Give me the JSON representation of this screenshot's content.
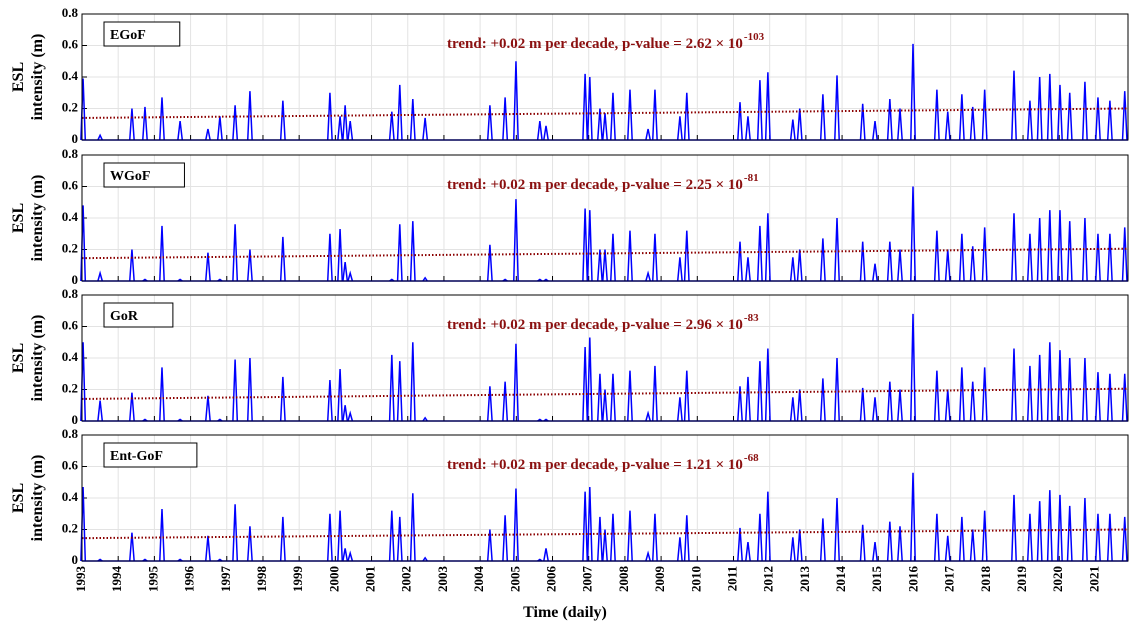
{
  "chart_data": [
    {
      "type": "line",
      "panel_label": "EGoF",
      "ylabel_lines": [
        "ESL",
        "intensity (m)"
      ],
      "annotation": "trend: +0.02 m per decade, p-value = 2.62 × 10",
      "annotation_exponent": "-103",
      "color": "#0000ff",
      "trend": {
        "x": [
          1993,
          2021.9
        ],
        "values": [
          0.14,
          0.2
        ],
        "color": "#8b0000"
      },
      "x": [
        1993.03,
        1993.5,
        1994.38,
        1994.74,
        1995.21,
        1995.71,
        1996.48,
        1996.81,
        1997.23,
        1997.64,
        1998.55,
        1999.85,
        2000.13,
        2000.27,
        2000.41,
        2001.56,
        2001.78,
        2002.14,
        2002.48,
        2004.27,
        2004.69,
        2004.99,
        2005.65,
        2005.82,
        2006.9,
        2007.03,
        2007.31,
        2007.45,
        2007.67,
        2008.14,
        2008.64,
        2008.83,
        2009.52,
        2009.71,
        2011.18,
        2011.4,
        2011.73,
        2011.95,
        2012.64,
        2012.83,
        2013.47,
        2013.86,
        2014.57,
        2014.91,
        2015.32,
        2015.6,
        2015.96,
        2016.62,
        2016.92,
        2017.31,
        2017.61,
        2017.94,
        2018.75,
        2019.19,
        2019.46,
        2019.74,
        2020.02,
        2020.29,
        2020.71,
        2021.07,
        2021.4,
        2021.81
      ],
      "values": [
        0.39,
        0.03,
        0.2,
        0.21,
        0.27,
        0.12,
        0.07,
        0.15,
        0.22,
        0.31,
        0.25,
        0.3,
        0.15,
        0.22,
        0.12,
        0.18,
        0.35,
        0.26,
        0.14,
        0.22,
        0.27,
        0.5,
        0.12,
        0.09,
        0.42,
        0.4,
        0.2,
        0.17,
        0.3,
        0.32,
        0.07,
        0.32,
        0.15,
        0.3,
        0.24,
        0.15,
        0.38,
        0.43,
        0.13,
        0.2,
        0.29,
        0.41,
        0.23,
        0.12,
        0.26,
        0.2,
        0.61,
        0.32,
        0.18,
        0.29,
        0.21,
        0.32,
        0.44,
        0.25,
        0.4,
        0.42,
        0.35,
        0.3,
        0.37,
        0.27,
        0.25,
        0.31
      ],
      "xlim": [
        1993,
        2021.9
      ],
      "xticks": [
        1993,
        1994,
        1995,
        1996,
        1997,
        1998,
        1999,
        2000,
        2001,
        2002,
        2003,
        2004,
        2005,
        2006,
        2007,
        2008,
        2009,
        2010,
        2011,
        2012,
        2013,
        2014,
        2015,
        2016,
        2017,
        2018,
        2019,
        2020,
        2021
      ],
      "ylim": [
        0,
        0.8
      ],
      "yticks": [
        0,
        0.2,
        0.4,
        0.6,
        0.8
      ],
      "grid": true
    },
    {
      "type": "line",
      "panel_label": "WGoF",
      "ylabel_lines": [
        "ESL",
        "intensity (m)"
      ],
      "annotation": "trend: +0.02 m per decade, p-value = 2.25 × 10",
      "annotation_exponent": "-81",
      "color": "#0000ff",
      "trend": {
        "x": [
          1993,
          2021.9
        ],
        "values": [
          0.145,
          0.205
        ],
        "color": "#8b0000"
      },
      "x": [
        1993.03,
        1993.5,
        1994.38,
        1994.74,
        1995.21,
        1995.71,
        1996.48,
        1996.81,
        1997.23,
        1997.64,
        1998.55,
        1999.85,
        2000.13,
        2000.27,
        2000.41,
        2001.56,
        2001.78,
        2002.14,
        2002.48,
        2004.27,
        2004.69,
        2004.99,
        2005.65,
        2005.82,
        2006.9,
        2007.03,
        2007.31,
        2007.45,
        2007.67,
        2008.14,
        2008.64,
        2008.83,
        2009.52,
        2009.71,
        2011.18,
        2011.4,
        2011.73,
        2011.95,
        2012.64,
        2012.83,
        2013.47,
        2013.86,
        2014.57,
        2014.91,
        2015.32,
        2015.6,
        2015.96,
        2016.62,
        2016.92,
        2017.31,
        2017.61,
        2017.94,
        2018.75,
        2019.19,
        2019.46,
        2019.74,
        2020.02,
        2020.29,
        2020.71,
        2021.07,
        2021.4,
        2021.81
      ],
      "values": [
        0.48,
        0.05,
        0.2,
        0.01,
        0.35,
        0.01,
        0.18,
        0.01,
        0.36,
        0.2,
        0.28,
        0.3,
        0.33,
        0.12,
        0.05,
        0.01,
        0.36,
        0.38,
        0.02,
        0.23,
        0.01,
        0.52,
        0.01,
        0.01,
        0.46,
        0.45,
        0.2,
        0.2,
        0.3,
        0.32,
        0.05,
        0.3,
        0.15,
        0.32,
        0.25,
        0.15,
        0.35,
        0.43,
        0.15,
        0.2,
        0.27,
        0.4,
        0.25,
        0.11,
        0.25,
        0.2,
        0.6,
        0.32,
        0.2,
        0.3,
        0.22,
        0.34,
        0.43,
        0.3,
        0.4,
        0.45,
        0.45,
        0.38,
        0.4,
        0.3,
        0.3,
        0.34
      ],
      "xlim": [
        1993,
        2021.9
      ],
      "xticks": [
        1993,
        1994,
        1995,
        1996,
        1997,
        1998,
        1999,
        2000,
        2001,
        2002,
        2003,
        2004,
        2005,
        2006,
        2007,
        2008,
        2009,
        2010,
        2011,
        2012,
        2013,
        2014,
        2015,
        2016,
        2017,
        2018,
        2019,
        2020,
        2021
      ],
      "ylim": [
        0,
        0.8
      ],
      "yticks": [
        0,
        0.2,
        0.4,
        0.6,
        0.8
      ],
      "grid": true
    },
    {
      "type": "line",
      "panel_label": "GoR",
      "ylabel_lines": [
        "ESL",
        "intensity (m)"
      ],
      "annotation": "trend: +0.02 m per decade, p-value = 2.96 × 10",
      "annotation_exponent": "-83",
      "color": "#0000ff",
      "trend": {
        "x": [
          1993,
          2021.9
        ],
        "values": [
          0.14,
          0.205
        ],
        "color": "#8b0000"
      },
      "x": [
        1993.03,
        1993.5,
        1994.38,
        1994.74,
        1995.21,
        1995.71,
        1996.48,
        1996.81,
        1997.23,
        1997.64,
        1998.55,
        1999.85,
        2000.13,
        2000.27,
        2000.41,
        2001.56,
        2001.78,
        2002.14,
        2002.48,
        2004.27,
        2004.69,
        2004.99,
        2005.65,
        2005.82,
        2006.9,
        2007.03,
        2007.31,
        2007.45,
        2007.67,
        2008.14,
        2008.64,
        2008.83,
        2009.52,
        2009.71,
        2011.18,
        2011.4,
        2011.73,
        2011.95,
        2012.64,
        2012.83,
        2013.47,
        2013.86,
        2014.57,
        2014.91,
        2015.32,
        2015.6,
        2015.96,
        2016.62,
        2016.92,
        2017.31,
        2017.61,
        2017.94,
        2018.75,
        2019.19,
        2019.46,
        2019.74,
        2020.02,
        2020.29,
        2020.71,
        2021.07,
        2021.4,
        2021.81
      ],
      "values": [
        0.5,
        0.13,
        0.18,
        0.01,
        0.34,
        0.01,
        0.16,
        0.01,
        0.39,
        0.4,
        0.28,
        0.26,
        0.33,
        0.1,
        0.05,
        0.42,
        0.38,
        0.5,
        0.02,
        0.22,
        0.25,
        0.49,
        0.01,
        0.01,
        0.47,
        0.53,
        0.3,
        0.2,
        0.3,
        0.32,
        0.05,
        0.35,
        0.15,
        0.32,
        0.22,
        0.28,
        0.38,
        0.46,
        0.15,
        0.2,
        0.27,
        0.4,
        0.21,
        0.15,
        0.25,
        0.2,
        0.68,
        0.32,
        0.2,
        0.34,
        0.25,
        0.34,
        0.46,
        0.35,
        0.42,
        0.5,
        0.45,
        0.4,
        0.4,
        0.31,
        0.3,
        0.3
      ],
      "xlim": [
        1993,
        2021.9
      ],
      "xticks": [
        1993,
        1994,
        1995,
        1996,
        1997,
        1998,
        1999,
        2000,
        2001,
        2002,
        2003,
        2004,
        2005,
        2006,
        2007,
        2008,
        2009,
        2010,
        2011,
        2012,
        2013,
        2014,
        2015,
        2016,
        2017,
        2018,
        2019,
        2020,
        2021
      ],
      "ylim": [
        0,
        0.8
      ],
      "yticks": [
        0,
        0.2,
        0.4,
        0.6,
        0.8
      ],
      "grid": true
    },
    {
      "type": "line",
      "panel_label": "Ent-GoF",
      "ylabel_lines": [
        "ESL",
        "intensity (m)"
      ],
      "annotation": "trend: +0.02 m per decade, p-value = 1.21 × 10",
      "annotation_exponent": "-68",
      "color": "#0000ff",
      "trend": {
        "x": [
          1993,
          2021.9
        ],
        "values": [
          0.145,
          0.2
        ],
        "color": "#8b0000"
      },
      "x": [
        1993.03,
        1993.5,
        1994.38,
        1994.74,
        1995.21,
        1995.71,
        1996.48,
        1996.81,
        1997.23,
        1997.64,
        1998.55,
        1999.85,
        2000.13,
        2000.27,
        2000.41,
        2001.56,
        2001.78,
        2002.14,
        2002.48,
        2004.27,
        2004.69,
        2004.99,
        2005.65,
        2005.82,
        2006.9,
        2007.03,
        2007.31,
        2007.45,
        2007.67,
        2008.14,
        2008.64,
        2008.83,
        2009.52,
        2009.71,
        2011.18,
        2011.4,
        2011.73,
        2011.95,
        2012.64,
        2012.83,
        2013.47,
        2013.86,
        2014.57,
        2014.91,
        2015.32,
        2015.6,
        2015.96,
        2016.62,
        2016.92,
        2017.31,
        2017.61,
        2017.94,
        2018.75,
        2019.19,
        2019.46,
        2019.74,
        2020.02,
        2020.29,
        2020.71,
        2021.07,
        2021.4,
        2021.81
      ],
      "values": [
        0.47,
        0.01,
        0.18,
        0.01,
        0.33,
        0.01,
        0.16,
        0.01,
        0.36,
        0.22,
        0.28,
        0.3,
        0.32,
        0.08,
        0.05,
        0.32,
        0.28,
        0.43,
        0.02,
        0.2,
        0.29,
        0.46,
        0.01,
        0.08,
        0.44,
        0.47,
        0.28,
        0.2,
        0.3,
        0.32,
        0.05,
        0.3,
        0.15,
        0.29,
        0.21,
        0.12,
        0.3,
        0.44,
        0.15,
        0.2,
        0.27,
        0.4,
        0.23,
        0.12,
        0.25,
        0.22,
        0.56,
        0.3,
        0.16,
        0.28,
        0.2,
        0.32,
        0.42,
        0.3,
        0.38,
        0.45,
        0.42,
        0.35,
        0.4,
        0.3,
        0.3,
        0.28
      ],
      "xlim": [
        1993,
        2021.9
      ],
      "xticks": [
        1993,
        1994,
        1995,
        1996,
        1997,
        1998,
        1999,
        2000,
        2001,
        2002,
        2003,
        2004,
        2005,
        2006,
        2007,
        2008,
        2009,
        2010,
        2011,
        2012,
        2013,
        2014,
        2015,
        2016,
        2017,
        2018,
        2019,
        2020,
        2021
      ],
      "ylim": [
        0,
        0.8
      ],
      "yticks": [
        0,
        0.2,
        0.4,
        0.6,
        0.8
      ],
      "grid": true,
      "xlabel": "Time (daily)"
    }
  ]
}
